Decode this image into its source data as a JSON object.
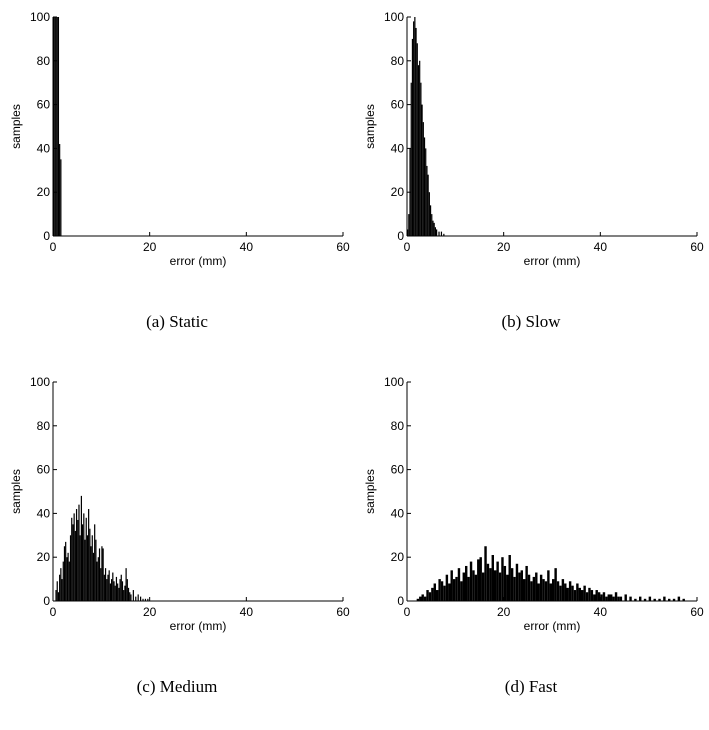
{
  "chart_data": [
    {
      "type": "bar",
      "caption": "(a) Static",
      "xlabel": "error (mm)",
      "ylabel": "samples",
      "xlim": [
        0,
        60
      ],
      "ylim": [
        0,
        100
      ],
      "xticks": [
        0,
        20,
        40,
        60
      ],
      "yticks": [
        0,
        20,
        40,
        60,
        80,
        100
      ],
      "bin_width": 0.25,
      "x": [
        0.0,
        0.25,
        0.5,
        0.75,
        1.0,
        1.25,
        1.5
      ],
      "values": [
        100,
        100,
        100,
        100,
        100,
        42,
        35
      ]
    },
    {
      "type": "bar",
      "caption": "(b) Slow",
      "xlabel": "error (mm)",
      "ylabel": "samples",
      "xlim": [
        0,
        60
      ],
      "ylim": [
        0,
        100
      ],
      "xticks": [
        0,
        20,
        40,
        60
      ],
      "yticks": [
        0,
        20,
        40,
        60,
        80,
        100
      ],
      "bin_width": 0.25,
      "x": [
        0.0,
        0.25,
        0.5,
        0.75,
        1.0,
        1.25,
        1.5,
        1.75,
        2.0,
        2.25,
        2.5,
        2.75,
        3.0,
        3.25,
        3.5,
        3.75,
        4.0,
        4.25,
        4.5,
        4.75,
        5.0,
        5.25,
        5.5,
        5.75,
        6.0,
        6.5,
        7.0,
        7.5
      ],
      "values": [
        3,
        10,
        40,
        70,
        90,
        98,
        100,
        95,
        88,
        78,
        80,
        70,
        60,
        52,
        45,
        40,
        32,
        28,
        20,
        14,
        10,
        7,
        6,
        4,
        3,
        2,
        2,
        1
      ]
    },
    {
      "type": "bar",
      "caption": "(c) Medium",
      "xlabel": "error (mm)",
      "ylabel": "samples",
      "xlim": [
        0,
        60
      ],
      "ylim": [
        0,
        100
      ],
      "xticks": [
        0,
        20,
        40,
        60
      ],
      "yticks": [
        0,
        20,
        40,
        60,
        80,
        100
      ],
      "bin_width": 0.25,
      "x": [
        0.5,
        0.75,
        1.0,
        1.25,
        1.5,
        1.75,
        2.0,
        2.25,
        2.5,
        2.75,
        3.0,
        3.25,
        3.5,
        3.75,
        4.0,
        4.25,
        4.5,
        4.75,
        5.0,
        5.25,
        5.5,
        5.75,
        6.0,
        6.25,
        6.5,
        6.75,
        7.0,
        7.25,
        7.5,
        7.75,
        8.0,
        8.25,
        8.5,
        8.75,
        9.0,
        9.25,
        9.5,
        9.75,
        10.0,
        10.25,
        10.5,
        10.75,
        11.0,
        11.25,
        11.5,
        11.75,
        12.0,
        12.25,
        12.5,
        12.75,
        13.0,
        13.25,
        13.5,
        13.75,
        14.0,
        14.25,
        14.5,
        14.75,
        15.0,
        15.25,
        15.5,
        15.75,
        16.0,
        16.5,
        17.0,
        17.5,
        18.0,
        18.5,
        19.0,
        19.5
      ],
      "values": [
        5,
        9,
        4,
        12,
        15,
        10,
        18,
        25,
        27,
        20,
        22,
        18,
        30,
        38,
        35,
        40,
        32,
        42,
        37,
        44,
        30,
        48,
        35,
        40,
        28,
        38,
        30,
        42,
        33,
        25,
        30,
        22,
        35,
        28,
        18,
        20,
        24,
        15,
        25,
        24,
        12,
        15,
        10,
        12,
        14,
        8,
        10,
        13,
        9,
        7,
        11,
        8,
        6,
        10,
        12,
        9,
        5,
        7,
        15,
        10,
        6,
        4,
        3,
        5,
        2,
        3,
        2,
        1,
        1,
        1
      ]
    },
    {
      "type": "bar",
      "caption": "(d) Fast",
      "xlabel": "error (mm)",
      "ylabel": "samples",
      "xlim": [
        0,
        60
      ],
      "ylim": [
        0,
        100
      ],
      "xticks": [
        0,
        20,
        40,
        60
      ],
      "yticks": [
        0,
        20,
        40,
        60,
        80,
        100
      ],
      "bin_width": 0.5,
      "x": [
        2.0,
        2.5,
        3.0,
        3.5,
        4.0,
        4.5,
        5.0,
        5.5,
        6.0,
        6.5,
        7.0,
        7.5,
        8.0,
        8.5,
        9.0,
        9.5,
        10.0,
        10.5,
        11.0,
        11.5,
        12.0,
        12.5,
        13.0,
        13.5,
        14.0,
        14.5,
        15.0,
        15.5,
        16.0,
        16.5,
        17.0,
        17.5,
        18.0,
        18.5,
        19.0,
        19.5,
        20.0,
        20.5,
        21.0,
        21.5,
        22.0,
        22.5,
        23.0,
        23.5,
        24.0,
        24.5,
        25.0,
        25.5,
        26.0,
        26.5,
        27.0,
        27.5,
        28.0,
        28.5,
        29.0,
        29.5,
        30.0,
        30.5,
        31.0,
        31.5,
        32.0,
        32.5,
        33.0,
        33.5,
        34.0,
        34.5,
        35.0,
        35.5,
        36.0,
        36.5,
        37.0,
        37.5,
        38.0,
        38.5,
        39.0,
        39.5,
        40.0,
        40.5,
        41.0,
        41.5,
        42.0,
        42.5,
        43.0,
        43.5,
        44.0,
        45.0,
        46.0,
        47.0,
        48.0,
        49.0,
        50.0,
        51.0,
        52.0,
        53.0,
        54.0,
        55.0,
        56.0,
        57.0
      ],
      "values": [
        1,
        2,
        3,
        2,
        5,
        4,
        6,
        8,
        5,
        10,
        9,
        7,
        12,
        8,
        14,
        10,
        11,
        15,
        9,
        13,
        16,
        11,
        18,
        14,
        12,
        19,
        20,
        13,
        25,
        17,
        15,
        21,
        14,
        18,
        13,
        20,
        16,
        12,
        21,
        15,
        11,
        17,
        13,
        14,
        10,
        16,
        12,
        9,
        11,
        13,
        8,
        12,
        10,
        9,
        14,
        8,
        10,
        15,
        9,
        7,
        10,
        8,
        6,
        9,
        7,
        5,
        8,
        6,
        5,
        7,
        4,
        6,
        5,
        3,
        5,
        4,
        3,
        4,
        2,
        3,
        3,
        2,
        4,
        2,
        2,
        3,
        2,
        1,
        2,
        1,
        2,
        1,
        1,
        2,
        1,
        1,
        2,
        1
      ]
    }
  ]
}
